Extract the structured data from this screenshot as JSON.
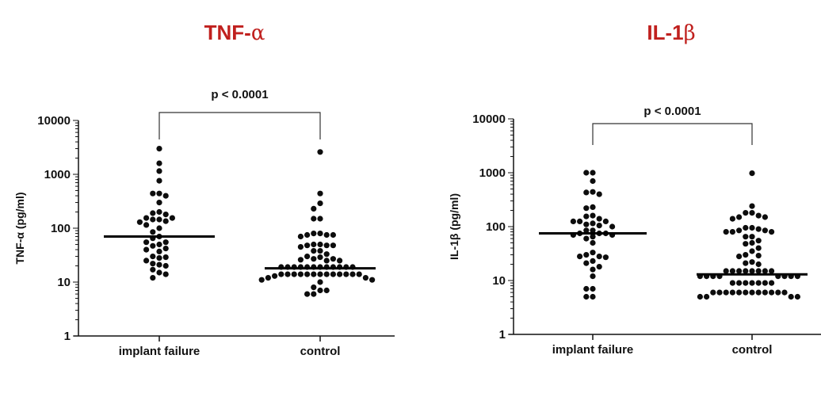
{
  "chart_data": [
    {
      "type": "scatter",
      "subtype": "dot-plot-with-median",
      "title": "TNF-α",
      "title_main": "TNF-",
      "title_greek": "α",
      "xlabel": "",
      "ylabel": "TNF-α (pg/ml)",
      "yscale": "log",
      "ylim": [
        1,
        10000
      ],
      "yticks": [
        "1",
        "10",
        "100",
        "1000",
        "10000"
      ],
      "categories": [
        "implant failure",
        "control"
      ],
      "significance": "p < 0.0001",
      "series": [
        {
          "name": "implant failure",
          "median": 70,
          "values": [
            3000,
            1600,
            1150,
            760,
            440,
            400,
            440,
            300,
            200,
            180,
            190,
            155,
            145,
            135,
            130,
            145,
            155,
            115,
            100,
            85,
            70,
            65,
            55,
            47,
            50,
            55,
            42,
            37,
            40,
            30,
            28,
            29,
            25,
            22,
            20,
            21,
            17,
            15,
            14,
            12
          ]
        },
        {
          "name": "control",
          "median": 18,
          "values": [
            2600,
            440,
            290,
            230,
            150,
            150,
            80,
            75,
            75,
            70,
            75,
            80,
            50,
            48,
            45,
            48,
            48,
            50,
            38,
            33,
            38,
            30,
            27,
            25,
            29,
            25,
            26,
            27,
            19,
            19,
            19,
            19,
            19,
            19,
            19,
            19,
            19,
            19,
            19,
            19,
            14,
            14,
            14,
            14,
            14,
            14,
            14,
            14,
            14,
            14,
            14,
            14,
            14,
            12,
            11,
            10,
            11,
            12,
            13,
            8,
            7,
            6,
            6,
            7
          ]
        }
      ]
    },
    {
      "type": "scatter",
      "subtype": "dot-plot-with-median",
      "title": "IL-1β",
      "title_main": "IL-1",
      "title_greek": "β",
      "xlabel": "",
      "ylabel": "IL-1β (pg/ml)",
      "yscale": "log",
      "ylim": [
        1,
        10000
      ],
      "yticks": [
        "1",
        "10",
        "100",
        "1000",
        "10000"
      ],
      "categories": [
        "implant failure",
        "control"
      ],
      "significance": "p < 0.0001",
      "series": [
        {
          "name": "implant failure",
          "median": 75,
          "values": [
            1000,
            1000,
            700,
            440,
            400,
            430,
            230,
            220,
            160,
            140,
            155,
            125,
            115,
            110,
            125,
            100,
            105,
            125,
            85,
            75,
            75,
            70,
            75,
            85,
            65,
            60,
            70,
            50,
            33,
            28,
            27,
            28,
            30,
            23,
            21,
            18,
            16,
            12,
            7,
            7,
            5,
            5
          ]
        },
        {
          "name": "control",
          "median": 13,
          "values": [
            980,
            240,
            180,
            150,
            140,
            150,
            160,
            180,
            85,
            80,
            95,
            80,
            90,
            65,
            95,
            65,
            80,
            85,
            55,
            48,
            40,
            50,
            35,
            30,
            28,
            29,
            22,
            20,
            21,
            15,
            15,
            15,
            15,
            15,
            15,
            15,
            15,
            12,
            12,
            12,
            12,
            12,
            12,
            12,
            12,
            9,
            9,
            9,
            9,
            9,
            9,
            9,
            6,
            6,
            6,
            6,
            6,
            6,
            6,
            6,
            6,
            6,
            6,
            6,
            5,
            5,
            5,
            5
          ]
        }
      ]
    }
  ],
  "colors": {
    "title": "#c0201e",
    "ink": "#111111"
  }
}
